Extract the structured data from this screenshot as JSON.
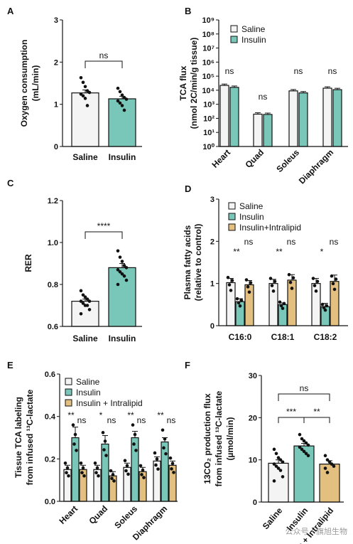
{
  "colors": {
    "saline": "#f4f4f4",
    "insulin": "#78c7b8",
    "intralipid": "#e3bf80",
    "edge": "#111111"
  },
  "watermark": "公众号 · 旗旭生物",
  "chart_data": [
    {
      "panel": "A",
      "type": "bar",
      "categories": [
        "Saline",
        "Insulin"
      ],
      "values": [
        1.27,
        1.13
      ],
      "errors": [
        0.07,
        0.06
      ],
      "points": [
        [
          1.63,
          1.52,
          1.42,
          1.32,
          1.28,
          1.24,
          1.2,
          1.14,
          0.97
        ],
        [
          1.38,
          1.3,
          1.22,
          1.16,
          1.12,
          1.08,
          1.03,
          0.97,
          0.86
        ]
      ],
      "ylabel": "Oxygen consumption (mL/min)",
      "ylim": [
        0,
        3
      ],
      "yticks": [
        0,
        1,
        2,
        3
      ],
      "annotations": [
        {
          "text": "ns",
          "between": [
            0,
            1
          ]
        }
      ]
    },
    {
      "panel": "B",
      "type": "bar",
      "scale": "log",
      "categories": [
        "Heart",
        "Quad",
        "Soleus",
        "Diaphragm"
      ],
      "series": [
        {
          "name": "Saline",
          "values": [
            22000,
            200,
            9000,
            14000
          ]
        },
        {
          "name": "Insulin",
          "values": [
            16000,
            190,
            6500,
            11000
          ]
        }
      ],
      "ylabel": "TCA flux (nmol 2C/min/g tissue)",
      "ylim": [
        1,
        1000000000
      ],
      "yticks": [
        "10⁰",
        "10¹",
        "10²",
        "10³",
        "10⁴",
        "10⁵",
        "10⁶",
        "10⁷",
        "10⁸",
        "10⁹"
      ],
      "annotations": [
        "ns",
        "ns",
        "ns",
        "ns"
      ],
      "legend": "top-right"
    },
    {
      "panel": "C",
      "type": "bar",
      "categories": [
        "Saline",
        "Insulin"
      ],
      "values": [
        0.72,
        0.88
      ],
      "errors": [
        0.01,
        0.02
      ],
      "points": [
        [
          0.77,
          0.75,
          0.74,
          0.73,
          0.72,
          0.72,
          0.71,
          0.7,
          0.7,
          0.68,
          0.66
        ],
        [
          0.96,
          0.93,
          0.91,
          0.89,
          0.88,
          0.87,
          0.86,
          0.85,
          0.84,
          0.82,
          0.8
        ]
      ],
      "ylabel": "RER",
      "ylim": [
        0.6,
        1.2
      ],
      "yticks": [
        "0.6",
        "0.8",
        "1.0",
        "1.2"
      ],
      "annotations": [
        {
          "text": "****",
          "between": [
            0,
            1
          ]
        }
      ]
    },
    {
      "panel": "D",
      "type": "bar",
      "categories": [
        "C16:0",
        "C18:1",
        "C18:2"
      ],
      "series": [
        {
          "name": "Saline",
          "values": [
            1.02,
            1.0,
            1.0
          ]
        },
        {
          "name": "Insulin",
          "values": [
            0.57,
            0.5,
            0.45
          ]
        },
        {
          "name": "Insulin+Intralipid",
          "values": [
            0.97,
            1.08,
            1.05
          ]
        }
      ],
      "errors": [
        [
          0.1,
          0.1,
          0.12
        ],
        [
          0.07,
          0.04,
          0.08
        ],
        [
          0.1,
          0.13,
          0.15
        ]
      ],
      "ylabel": "Plasma fatty acids (relative to control)",
      "ylim": [
        0,
        3
      ],
      "yticks": [
        0,
        1,
        2,
        3
      ],
      "annotations": [
        [
          "**",
          "ns"
        ],
        [
          "**",
          "ns"
        ],
        [
          "*",
          "ns"
        ]
      ],
      "legend": "top-right"
    },
    {
      "panel": "E",
      "type": "bar",
      "categories": [
        "Heart",
        "Quad",
        "Soleus",
        "Diaphragm"
      ],
      "series": [
        {
          "name": "Saline",
          "values": [
            0.15,
            0.15,
            0.16,
            0.19
          ]
        },
        {
          "name": "Insulin",
          "values": [
            0.3,
            0.27,
            0.3,
            0.28
          ]
        },
        {
          "name": "Insulin + Intralipid",
          "values": [
            0.15,
            0.12,
            0.14,
            0.17
          ]
        }
      ],
      "errors": [
        [
          0.02,
          0.02,
          0.02,
          0.02
        ],
        [
          0.05,
          0.04,
          0.03,
          0.02
        ],
        [
          0.02,
          0.02,
          0.02,
          0.02
        ]
      ],
      "ylabel_lines": [
        "Tissue TCA labeling",
        "from infused ¹³C-lactate"
      ],
      "ylim": [
        0,
        0.6
      ],
      "yticks": [
        "0.0",
        "0.2",
        "0.4",
        "0.6"
      ],
      "annotations": [
        [
          "**",
          "ns"
        ],
        [
          "*",
          "ns"
        ],
        [
          "**",
          "ns"
        ],
        [
          "**",
          "ns"
        ]
      ],
      "legend": "top-left"
    },
    {
      "panel": "F",
      "type": "bar",
      "categories": [
        "Saline",
        "Insulin",
        "Insulin + Intralipid"
      ],
      "values": [
        9.2,
        13.3,
        9.0
      ],
      "errors": [
        0.8,
        0.6,
        0.8
      ],
      "ylabel_lines": [
        "13CO₂ production flux",
        "from infused ¹³C-lactate",
        "(µmol/min)"
      ],
      "ylim": [
        0,
        30
      ],
      "yticks": [
        0,
        10,
        20,
        30
      ],
      "annotations": [
        {
          "text": "ns",
          "between": [
            0,
            2
          ]
        },
        {
          "text": "***",
          "between": [
            0,
            1
          ]
        },
        {
          "text": "**",
          "between": [
            1,
            2
          ]
        }
      ]
    }
  ]
}
